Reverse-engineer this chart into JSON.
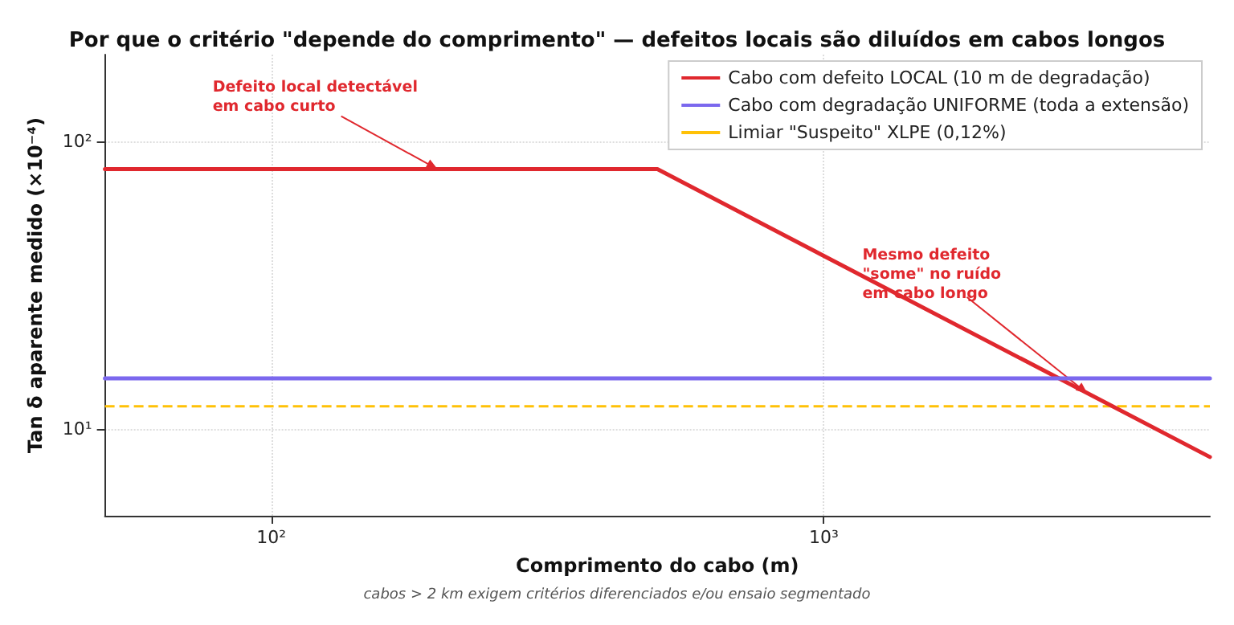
{
  "chart_data": {
    "type": "line",
    "title": "Por que o critério \"depende do comprimento\" — defeitos locais são diluídos em cabos longos",
    "xlabel": "Comprimento do cabo (m)",
    "ylabel": "Tan δ aparente medido (×10⁻⁴)",
    "log": "xy",
    "xlim": [
      50,
      5000
    ],
    "ylim": [
      5,
      200
    ],
    "xticks": [
      {
        "value": 100,
        "label": "10²"
      },
      {
        "value": 1000,
        "label": "10³"
      }
    ],
    "yticks": [
      {
        "value": 10,
        "label": "10¹"
      },
      {
        "value": 100,
        "label": "10²"
      }
    ],
    "series": [
      {
        "name": "Cabo com defeito LOCAL (10 m de degradação)",
        "color": "#e0282e",
        "x": [
          50,
          500,
          5000
        ],
        "values": [
          80,
          80,
          8
        ]
      },
      {
        "name": "Cabo com degradação UNIFORME (toda a extensão)",
        "color": "#7b68ee",
        "x": [
          50,
          5000
        ],
        "values": [
          15,
          15
        ]
      }
    ],
    "ref_lines": [
      {
        "axis": "y",
        "value": 12,
        "label": "Limiar \"Suspeito\" XLPE (0,12%)",
        "color": "#ffc107",
        "line_style": "dashed"
      }
    ],
    "annotations": [
      {
        "text": "Defeito local detectável\nem cabo curto",
        "x": 200,
        "y": 80
      },
      {
        "text": "Mesmo defeito\n\"some\" no ruído\nem cabo longo",
        "x": 3000,
        "y": 13.3
      },
      "cabos > 2 km exigem critérios diferenciados e/ou ensaio segmentado"
    ],
    "grid": true,
    "legend": "top right",
    "line_style": "solid",
    "marker": "none"
  }
}
